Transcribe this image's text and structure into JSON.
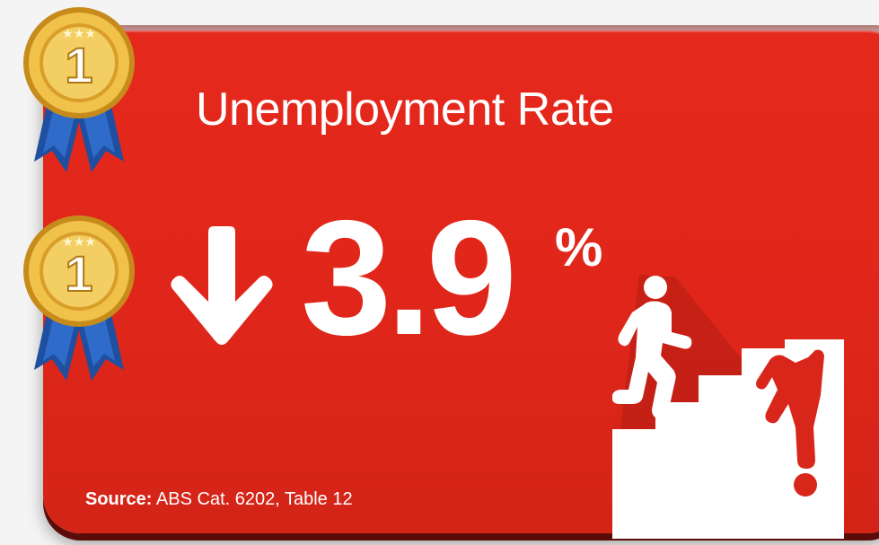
{
  "card": {
    "title": "Unemployment Rate",
    "value": "3.9",
    "unit": "%",
    "trend": "down",
    "source_label": "Source:",
    "source_text": " ABS Cat. 6202, Table 12"
  },
  "medals": [
    {
      "rank": "1",
      "icon": "gold-medal-icon"
    },
    {
      "rank": "1",
      "icon": "gold-medal-icon"
    }
  ],
  "icons": {
    "arrow": "arrow-down-icon",
    "stairs": "stairs-climbing-falling-icon"
  },
  "colors": {
    "card_red": "#e2271b",
    "card_shadow": "#5a0d08",
    "text": "#ffffff",
    "gold": "#e8b53c",
    "ribbon": "#1f4fa0"
  }
}
